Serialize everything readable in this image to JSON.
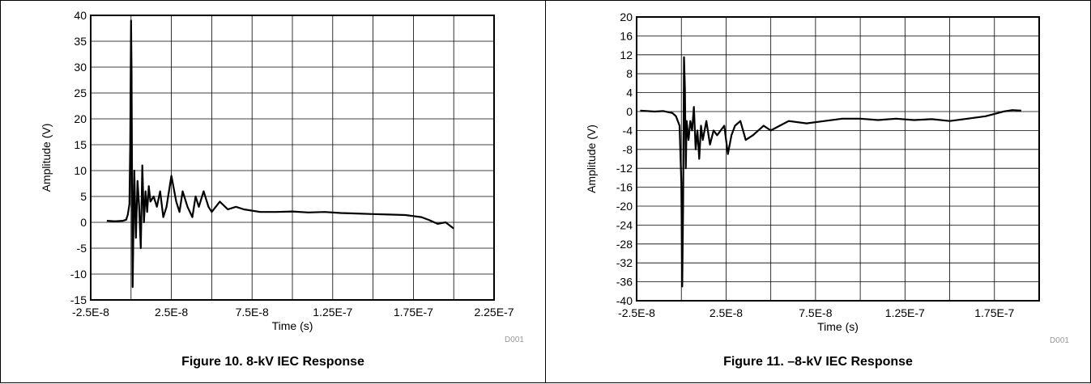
{
  "chart_data": [
    {
      "type": "line",
      "caption": "Figure 10. 8-kV IEC Response",
      "xlabel": "Time (s)",
      "ylabel": "Amplitude (V)",
      "code": "D001",
      "xlim": [
        -2.5e-08,
        2.25e-07
      ],
      "ylim": [
        -15,
        40
      ],
      "xticks": [
        -2.5e-08,
        0,
        2.5e-08,
        5e-08,
        7.5e-08,
        1e-07,
        1.25e-07,
        1.5e-07,
        1.75e-07,
        2e-07,
        2.25e-07
      ],
      "xtick_labels": [
        "-2.5E-8",
        "",
        "2.5E-8",
        "",
        "7.5E-8",
        "",
        "1.25E-7",
        "",
        "1.75E-7",
        "",
        "2.25E-7"
      ],
      "yticks": [
        -15,
        -10,
        -5,
        0,
        5,
        10,
        15,
        20,
        25,
        30,
        35,
        40
      ],
      "ytick_labels": [
        "-15",
        "-10",
        "-5",
        "0",
        "5",
        "10",
        "15",
        "20",
        "25",
        "30",
        "35",
        "40"
      ],
      "grid": true,
      "series": [
        {
          "x": [
            -1.5e-08,
            -1e-08,
            -5e-09,
            -3e-09,
            -2e-09,
            -1e-09,
            -5e-10,
            0,
            3e-10,
            6e-10,
            1e-09,
            1.5e-09,
            2e-09,
            2.5e-09,
            3e-09,
            4e-09,
            5e-09,
            6e-09,
            7e-09,
            8e-09,
            9e-09,
            1e-08,
            1.1e-08,
            1.2e-08,
            1.4e-08,
            1.6e-08,
            1.8e-08,
            2e-08,
            2.2e-08,
            2.5e-08,
            2.8e-08,
            3e-08,
            3.2e-08,
            3.5e-08,
            3.8e-08,
            4e-08,
            4.2e-08,
            4.5e-08,
            4.8e-08,
            5e-08,
            5.5e-08,
            6e-08,
            6.5e-08,
            7e-08,
            8e-08,
            9e-08,
            1e-07,
            1.1e-07,
            1.2e-07,
            1.3e-07,
            1.4e-07,
            1.5e-07,
            1.6e-07,
            1.7e-07,
            1.75e-07,
            1.8e-07,
            1.85e-07,
            1.9e-07,
            1.95e-07,
            2e-07
          ],
          "y": [
            0.3,
            0.2,
            0.3,
            0.5,
            1.5,
            3.5,
            15,
            39,
            30,
            10,
            -12.5,
            0,
            10,
            3,
            -3,
            8,
            3,
            -5,
            11,
            0,
            6,
            2,
            7,
            4,
            5,
            3,
            6,
            1,
            3,
            9,
            4,
            2,
            6,
            3,
            1,
            5,
            3,
            6,
            3,
            2,
            4,
            2.5,
            3,
            2.5,
            2,
            2,
            2.1,
            1.9,
            2,
            1.8,
            1.7,
            1.6,
            1.5,
            1.4,
            1.2,
            1,
            0.4,
            -0.3,
            0,
            -1.2
          ]
        }
      ]
    },
    {
      "type": "line",
      "caption": "Figure 11. –8-kV IEC Response",
      "xlabel": "Time (s)",
      "ylabel": "Amplitude (V)",
      "code": "D001",
      "xlim": [
        -2.5e-08,
        2e-07
      ],
      "ylim": [
        -40,
        20
      ],
      "xticks": [
        -2.5e-08,
        0,
        2.5e-08,
        5e-08,
        7.5e-08,
        1e-07,
        1.25e-07,
        1.5e-07,
        1.75e-07,
        2e-07
      ],
      "xtick_labels": [
        "-2.5E-8",
        "",
        "2.5E-8",
        "",
        "7.5E-8",
        "",
        "1.25E-7",
        "",
        "1.75E-7",
        ""
      ],
      "yticks": [
        -40,
        -36,
        -32,
        -28,
        -24,
        -20,
        -16,
        -12,
        -8,
        -4,
        0,
        4,
        8,
        12,
        16,
        20
      ],
      "ytick_labels": [
        "-40",
        "-36",
        "-32",
        "-28",
        "-24",
        "-20",
        "-16",
        "-12",
        "-8",
        "-4",
        "0",
        "4",
        "8",
        "12",
        "16",
        "20"
      ],
      "grid": true,
      "series": [
        {
          "x": [
            -2.3e-08,
            -1.5e-08,
            -1e-08,
            -5e-09,
            -3e-09,
            -1e-09,
            0,
            5e-10,
            1e-09,
            1.5e-09,
            2e-09,
            2.5e-09,
            3e-09,
            4e-09,
            5e-09,
            6e-09,
            7e-09,
            8e-09,
            9e-09,
            1e-08,
            1.1e-08,
            1.2e-08,
            1.4e-08,
            1.6e-08,
            1.8e-08,
            2e-08,
            2.2e-08,
            2.4e-08,
            2.6e-08,
            2.8e-08,
            3e-08,
            3.3e-08,
            3.6e-08,
            4e-08,
            4.3e-08,
            4.6e-08,
            5e-08,
            5.5e-08,
            6e-08,
            7e-08,
            8e-08,
            9e-08,
            1e-07,
            1.1e-07,
            1.2e-07,
            1.3e-07,
            1.4e-07,
            1.5e-07,
            1.6e-07,
            1.7e-07,
            1.75e-07,
            1.8e-07,
            1.85e-07,
            1.9e-07
          ],
          "y": [
            0.2,
            0,
            0.1,
            -0.3,
            -1,
            -3,
            -15,
            -37,
            -20,
            11.5,
            5,
            -12,
            -2,
            -6,
            -2,
            -4,
            1,
            -8,
            -4,
            -10,
            -3,
            -6,
            -2,
            -7,
            -4,
            -5,
            -4,
            -3,
            -9,
            -5,
            -3,
            -2,
            -6,
            -5,
            -4,
            -3,
            -4,
            -3,
            -2,
            -2.5,
            -2,
            -1.5,
            -1.5,
            -1.8,
            -1.5,
            -1.8,
            -1.6,
            -2,
            -1.5,
            -1,
            -0.5,
            0,
            0.3,
            0.2
          ]
        }
      ]
    }
  ]
}
